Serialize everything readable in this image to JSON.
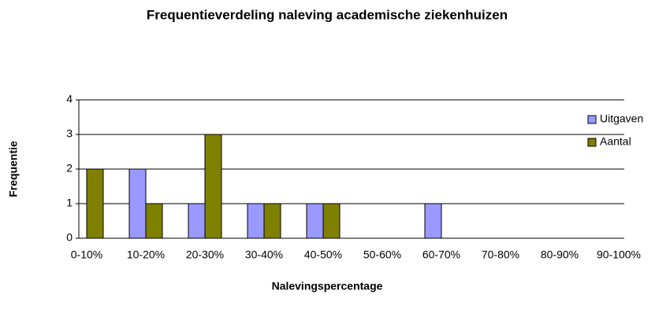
{
  "chart_data": {
    "type": "bar",
    "title": "Frequentieverdeling naleving academische ziekenhuizen",
    "x_label": "Nalevingspercentage",
    "y_label": "Frequentie",
    "categories": [
      "0-10%",
      "10-20%",
      "20-30%",
      "30-40%",
      "40-50%",
      "50-60%",
      "60-70%",
      "70-80%",
      "80-90%",
      "90-100%"
    ],
    "series": [
      {
        "name": "Uitgaven",
        "color": "#9999ff",
        "values": [
          0,
          2,
          1,
          1,
          1,
          0,
          1,
          0,
          0,
          0
        ]
      },
      {
        "name": "Aantal",
        "color": "#808000",
        "values": [
          2,
          1,
          3,
          1,
          1,
          0,
          0,
          0,
          0,
          0
        ]
      }
    ],
    "ylim": [
      0,
      4
    ],
    "yticks": [
      0,
      1,
      2,
      3,
      4
    ],
    "grid": true,
    "legend": "right"
  }
}
